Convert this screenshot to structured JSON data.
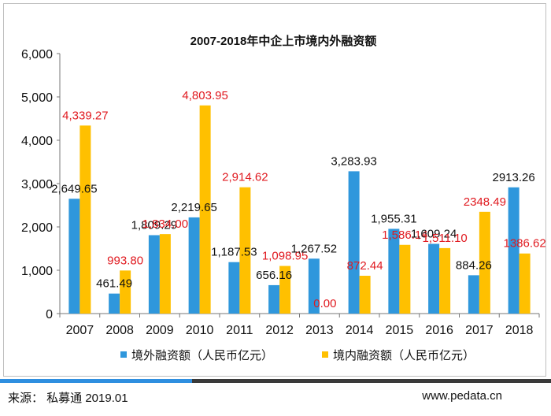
{
  "chart_data": {
    "type": "bar",
    "title": "2007-2018年中企上市境内外融资额",
    "categories": [
      "2007",
      "2008",
      "2009",
      "2010",
      "2011",
      "2012",
      "2013",
      "2014",
      "2015",
      "2016",
      "2017",
      "2018"
    ],
    "series": [
      {
        "name": "境外融资额（人民币亿元）",
        "color": "#2f97dc",
        "values": [
          2649.65,
          461.49,
          1809.29,
          2219.65,
          1187.53,
          656.16,
          1267.52,
          3283.93,
          1955.31,
          1609.24,
          884.26,
          2913.26
        ],
        "labels": [
          "2,649.65",
          "461.49",
          "1,809.29",
          "2,219.65",
          "1,187.53",
          "656.16",
          "1,267.52",
          "3,283.93",
          "1,955.31",
          "1,609.24",
          "884.26",
          "2913.26"
        ],
        "label_color": "#111111"
      },
      {
        "name": "境内融资额（人民币亿元）",
        "color": "#ffc000",
        "values": [
          4339.27,
          993.8,
          1834.0,
          4803.95,
          2914.62,
          1098.95,
          0.0,
          872.44,
          1586.14,
          1511.1,
          2348.49,
          1386.62
        ],
        "labels": [
          "4,339.27",
          "993.80",
          "1,834.00",
          "4,803.95",
          "2,914.62",
          "1,098.95",
          "0.00",
          "872.44",
          "1,586.14",
          "1,511.10",
          "2348.49",
          "1386.62"
        ],
        "label_color": "#e0191f"
      }
    ],
    "ylim": [
      0,
      6000
    ],
    "yticks": [
      0,
      1000,
      2000,
      3000,
      4000,
      5000,
      6000
    ],
    "ytick_labels": [
      "0",
      "1,000",
      "2,000",
      "3,000",
      "4,000",
      "5,000",
      "6,000"
    ],
    "legend_position": "bottom",
    "grid": false
  },
  "footer": {
    "source": "来源：  私募通  2019.01",
    "website": "www.pedata.cn"
  }
}
